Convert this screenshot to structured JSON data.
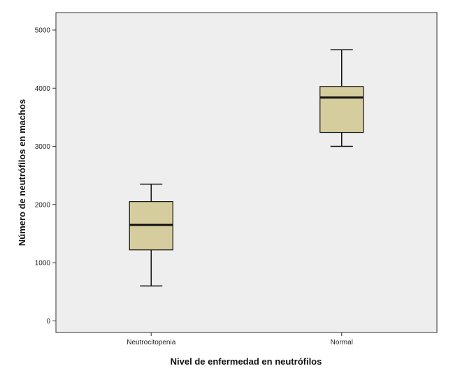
{
  "chart_data": {
    "type": "boxplot",
    "xlabel": "Nivel de enfermedad en neutrófilos",
    "ylabel": "Número de neutrófilos en machos",
    "categories": [
      "Neutrocitopenia",
      "Normal"
    ],
    "boxes": [
      {
        "category": "Neutrocitopenia",
        "min": 600,
        "q1": 1220,
        "median": 1650,
        "q3": 2050,
        "max": 2350
      },
      {
        "category": "Normal",
        "min": 3000,
        "q1": 3240,
        "median": 3840,
        "q3": 4030,
        "max": 4660
      }
    ],
    "yticks": [
      0,
      1000,
      2000,
      3000,
      4000,
      5000
    ],
    "ylim": [
      -200,
      5300
    ],
    "grid": false,
    "legend": "none",
    "colors": {
      "box_fill": "#d6cd9e",
      "plot_background": "#eeeeee",
      "line": "#111111"
    }
  }
}
